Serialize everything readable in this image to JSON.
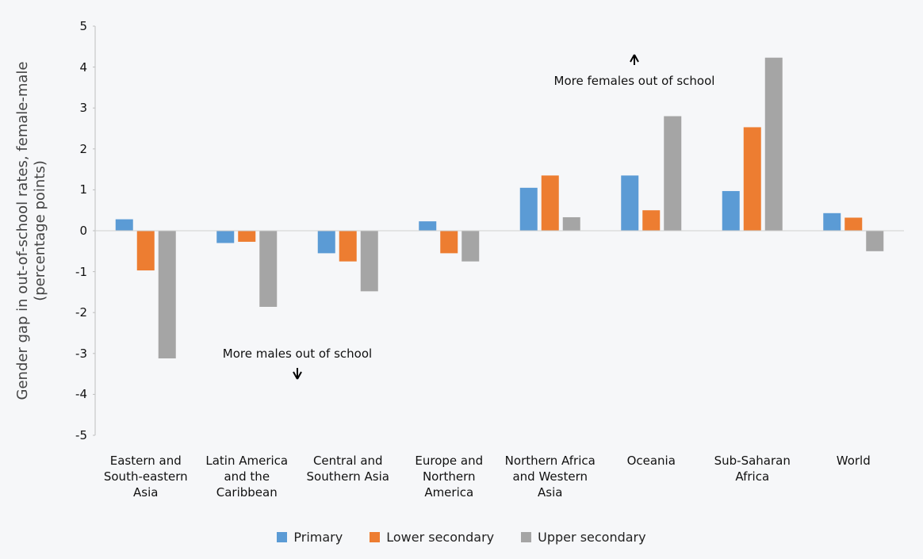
{
  "chart_data": {
    "type": "bar",
    "y_label": "Gender gap in out-of-school rates, female-male (percentage points)",
    "annotations": [
      "More females out of school",
      "More males out of school"
    ],
    "categories": [
      "Eastern and South-eastern Asia",
      "Latin America and the Caribbean",
      "Central and Southern Asia",
      "Europe and Northern America",
      "Northern Africa and Western Asia",
      "Oceania",
      "Sub-Saharan Africa",
      "World"
    ],
    "series": [
      {
        "name": "Primary",
        "color": "#5b9bd5",
        "values": [
          0.28,
          -0.3,
          -0.55,
          0.23,
          1.05,
          1.35,
          0.97,
          0.43
        ]
      },
      {
        "name": "Lower secondary",
        "color": "#ed7d31",
        "values": [
          -0.97,
          -0.27,
          -0.75,
          -0.55,
          1.35,
          0.5,
          2.53,
          0.32
        ]
      },
      {
        "name": "Upper secondary",
        "color": "#a5a5a5",
        "values": [
          -3.12,
          -1.86,
          -1.48,
          -0.75,
          0.33,
          2.8,
          4.23,
          -0.5
        ]
      }
    ],
    "ylim": [
      -5,
      5
    ],
    "yticks": [
      -5,
      -4,
      -3,
      -2,
      -1,
      0,
      1,
      2,
      3,
      4,
      5
    ],
    "legend": "bottom"
  }
}
